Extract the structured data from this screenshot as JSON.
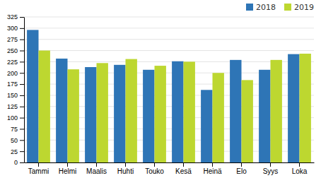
{
  "chart_data": {
    "type": "bar",
    "categories": [
      "Tammi",
      "Helmi",
      "Maalis",
      "Huhti",
      "Touko",
      "Kesä",
      "Heinä",
      "Elo",
      "Syys",
      "Loka"
    ],
    "series": [
      {
        "name": "2018",
        "color": "#2e75b6",
        "values": [
          296,
          232,
          213,
          218,
          207,
          226,
          162,
          229,
          207,
          242
        ]
      },
      {
        "name": "2019",
        "color": "#bdd730",
        "values": [
          250,
          208,
          222,
          231,
          216,
          225,
          200,
          184,
          229,
          243
        ]
      }
    ],
    "ylim": [
      0,
      325
    ],
    "yticks": [
      0,
      25,
      50,
      75,
      100,
      125,
      150,
      175,
      200,
      225,
      250,
      275,
      300,
      325
    ],
    "grid": true,
    "legend": "upper right"
  }
}
